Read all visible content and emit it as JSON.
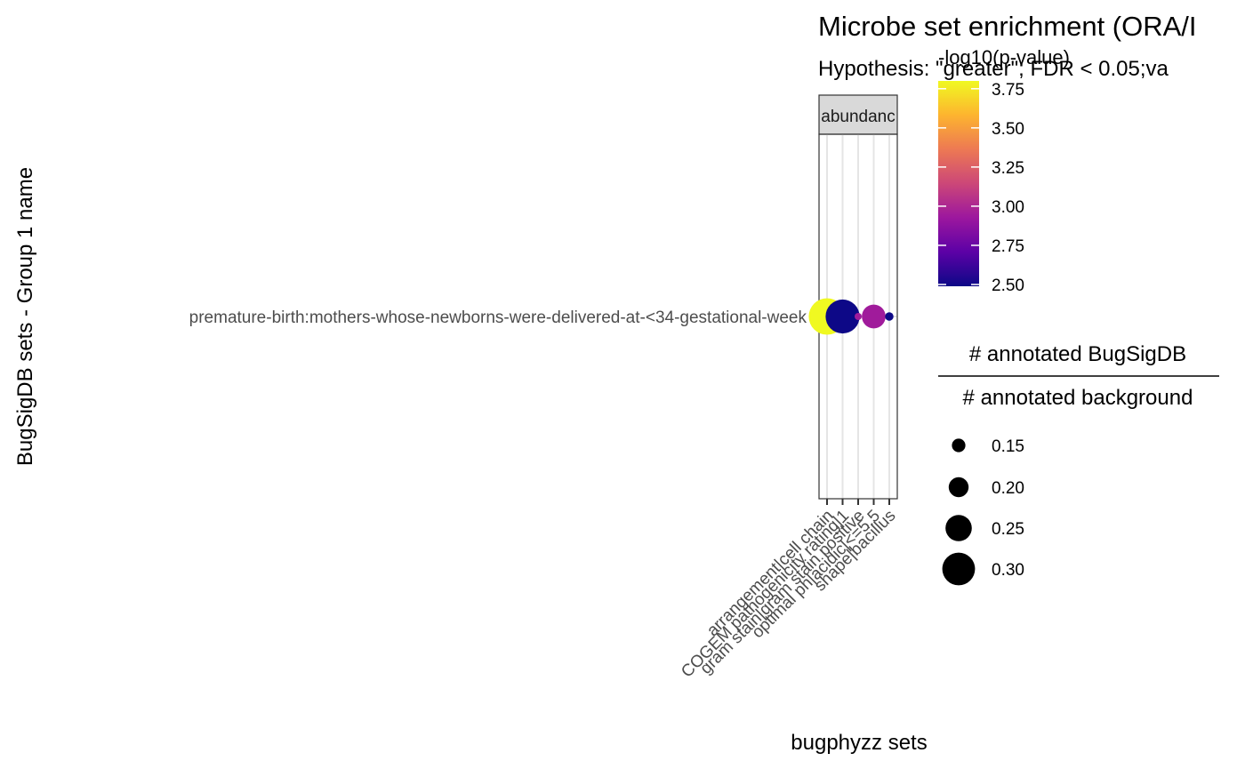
{
  "chart_data": {
    "type": "scatter",
    "title": "Microbe set enrichment (ORA/I",
    "subtitle": "Hypothesis: \"greater\"; FDR < 0.05;va",
    "xlabel": "bugphyzz sets",
    "ylabel": "BugSigDB sets - Group 1 name",
    "facet_label": "abundanc",
    "y_categories": [
      "premature-birth:mothers-whose-newborns-were-delivered-at-<34-gestational-week"
    ],
    "x_categories": [
      "arrangement|cell chain",
      "COGEM pathogenicity rating|1",
      "gram stain|gram stain positive",
      "optimal ph|acidic|<=5.5",
      "shape|bacillus"
    ],
    "points": [
      {
        "x": "arrangement|cell chain",
        "y": "premature-birth:mothers-whose-newborns-were-delivered-at-<34-gestational-week",
        "ratio": 0.33,
        "neg_log10_p": 3.85
      },
      {
        "x": "COGEM pathogenicity rating|1",
        "y": "premature-birth:mothers-whose-newborns-were-delivered-at-<34-gestational-week",
        "ratio": 0.31,
        "neg_log10_p": 2.5
      },
      {
        "x": "gram stain|gram stain positive",
        "y": "premature-birth:mothers-whose-newborns-were-delivered-at-<34-gestational-week",
        "ratio": 0.1,
        "neg_log10_p": 2.95
      },
      {
        "x": "optimal ph|acidic|<=5.5",
        "y": "premature-birth:mothers-whose-newborns-were-delivered-at-<34-gestational-week",
        "ratio": 0.23,
        "neg_log10_p": 2.95
      },
      {
        "x": "shape|bacillus",
        "y": "premature-birth:mothers-whose-newborns-were-delivered-at-<34-gestational-week",
        "ratio": 0.11,
        "neg_log10_p": 2.5
      }
    ],
    "color_legend": {
      "title": "-log10(p-value)",
      "range": [
        2.5,
        3.8
      ],
      "ticks": [
        "2.50",
        "2.75",
        "3.00",
        "3.25",
        "3.50",
        "3.75"
      ],
      "colors": [
        "#0d0887",
        "#5c01a6",
        "#9c179e",
        "#cc4778",
        "#ed7953",
        "#fdb42f",
        "#f0f921"
      ]
    },
    "size_legend": {
      "title_numerator": "# annotated BugSigDB",
      "title_denominator": "# annotated background",
      "ticks": [
        "0.15",
        "0.20",
        "0.25",
        "0.30"
      ]
    }
  }
}
